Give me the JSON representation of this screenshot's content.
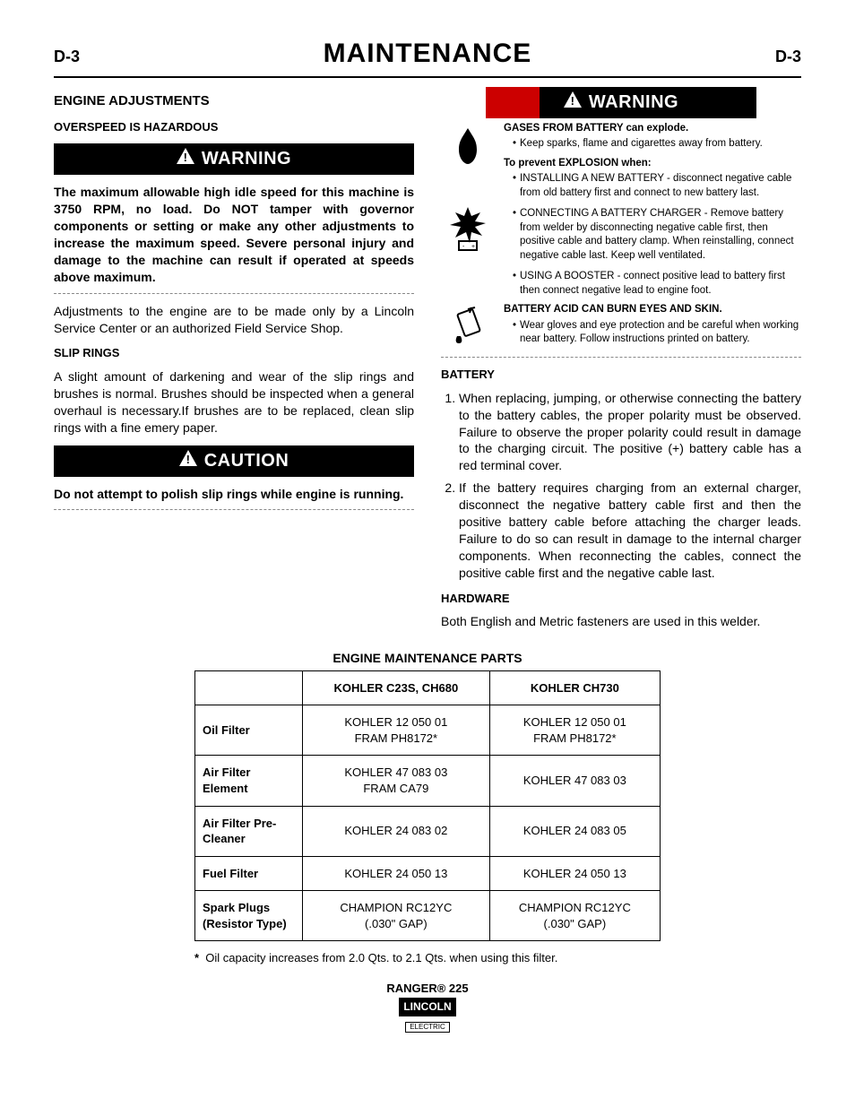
{
  "page": {
    "code_left": "D-3",
    "title": "MAINTENANCE",
    "code_right": "D-3"
  },
  "left": {
    "h1": "ENGINE ADJUSTMENTS",
    "overspeed": "OVERSPEED IS HAZARDOUS",
    "warn_label": "WARNING",
    "warn_text": "The maximum allowable high idle speed for this machine is 3750 RPM, no load.  Do NOT tamper with governor components or setting or make any other adjustments to increase the maximum speed.  Severe personal injury and damage to the machine can result if operated at speeds above maximum.",
    "adjust_text": "Adjustments to the engine are to be made only by a Lincoln Service Center or an authorized Field Service Shop.",
    "slip_h": "SLIP RINGS",
    "slip_text": "A slight amount of darkening and wear of the slip rings and brushes is normal. Brushes should be inspected when a general overhaul is necessary.If brushes are to be replaced, clean slip rings with a fine emery paper.",
    "caution_label": "CAUTION",
    "caution_text": "Do not attempt to polish slip rings while engine is running."
  },
  "right": {
    "warn_label": "WARNING",
    "gases": {
      "lead": "GASES FROM BATTERY can explode.",
      "b1": "Keep sparks, flame and cigarettes away from battery.",
      "prevent": "To prevent EXPLOSION when:",
      "b2": "INSTALLING A NEW BATTERY -  disconnect negative cable from old battery first and connect to new battery last.",
      "b3": "CONNECTING A BATTERY CHARGER - Remove battery from welder by disconnecting negative cable first, then positive cable and battery clamp.  When reinstalling, connect negative cable last.  Keep well ventilated.",
      "b4": "USING A BOOSTER - connect positive lead to battery first then connect negative lead to engine foot."
    },
    "acid": {
      "lead": "BATTERY ACID CAN BURN EYES AND SKIN.",
      "b1": "Wear gloves and eye protection and be careful when working near battery.  Follow instructions printed on battery."
    },
    "battery_h": "BATTERY",
    "battery_1": "When replacing, jumping, or otherwise connecting the battery to the battery cables, the proper polarity must be observed. Failure to observe the proper polarity could result in damage to the charging circuit. The positive (+) battery cable has a red terminal cover.",
    "battery_2": "If the battery requires charging from an external charger, disconnect the negative battery cable first and then the positive battery cable before attaching the charger leads. Failure to do so can result in damage to the internal charger components. When reconnecting the cables, connect the positive cable first and the negative cable last.",
    "hardware_h": "HARDWARE",
    "hardware_text": "Both English and Metric fasteners are used in this welder."
  },
  "table": {
    "caption": "ENGINE MAINTENANCE PARTS",
    "columns": [
      "",
      "KOHLER C23S, CH680",
      "KOHLER CH730"
    ],
    "rows": [
      [
        "Oil Filter",
        "KOHLER 12 050 01\nFRAM PH8172*",
        "KOHLER 12 050 01\nFRAM PH8172*"
      ],
      [
        "Air Filter Element",
        "KOHLER 47 083 03\nFRAM CA79",
        "KOHLER 47 083 03"
      ],
      [
        "Air Filter Pre-Cleaner",
        "KOHLER 24 083 02",
        "KOHLER 24 083 05"
      ],
      [
        "Fuel Filter",
        "KOHLER 24 050 13",
        "KOHLER 24 050 13"
      ],
      [
        "Spark Plugs (Resistor Type)",
        "CHAMPION RC12YC\n(.030\" GAP)",
        "CHAMPION RC12YC\n(.030\" GAP)"
      ]
    ],
    "footnote_mark": "*",
    "footnote": "Oil capacity increases from 2.0 Qts. to 2.1 Qts. when using this filter."
  },
  "footer": {
    "product": "RANGER® 225",
    "brand": "LINCOLN",
    "brand_sub": "ELECTRIC"
  },
  "colors": {
    "bg": "#ffffff",
    "text": "#000000",
    "banner": "#000000",
    "red": "#cc0000",
    "dash": "#888888"
  }
}
